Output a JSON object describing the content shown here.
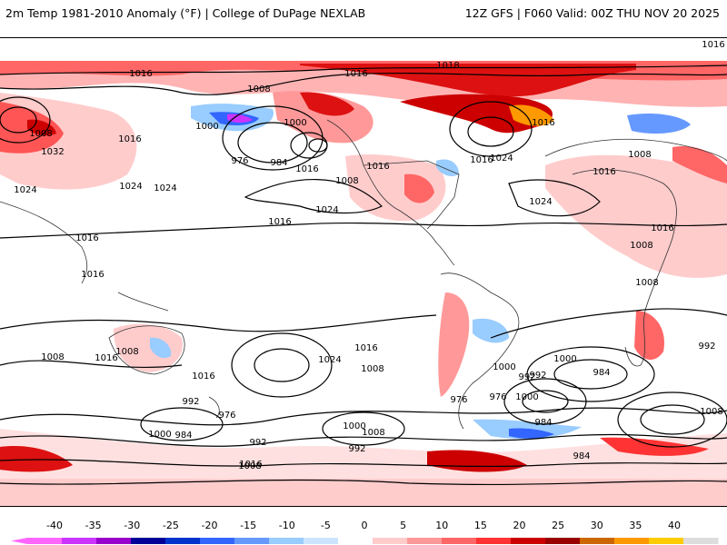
{
  "header": {
    "title": "2m Temp 1981-2010 Anomaly (°F) | College of DuPage NEXLAB",
    "run": "12Z GFS | F060 Valid: 00Z THU NOV 20 2025"
  },
  "legend": {
    "ticks": [
      "-40",
      "-35",
      "-30",
      "-25",
      "-20",
      "-15",
      "-10",
      "-5",
      "0",
      "5",
      "10",
      "15",
      "20",
      "25",
      "30",
      "35",
      "40"
    ],
    "colors": [
      "#ff66ff",
      "#cc33ff",
      "#9900cc",
      "#000099",
      "#0033cc",
      "#3366ff",
      "#6699ff",
      "#99ccff",
      "#cce5ff",
      "#ffffff",
      "#ffcccc",
      "#ff9999",
      "#ff6666",
      "#ff3333",
      "#cc0000",
      "#990000",
      "#cc6600",
      "#ff9900",
      "#ffcc00",
      "#dddddd"
    ]
  },
  "contour_labels": [
    "1016",
    "1016",
    "1018",
    "1008",
    "1008",
    "1000",
    "1000",
    "1016",
    "1032",
    "1024",
    "1024",
    "1024",
    "976",
    "984",
    "1016",
    "1008",
    "1024",
    "1016",
    "1016",
    "1016",
    "1024",
    "1016",
    "1024",
    "1008",
    "1016",
    "1008",
    "1016",
    "1008",
    "1016",
    "1016",
    "1008",
    "1016",
    "1016",
    "1024",
    "1016",
    "1008",
    "1016",
    "1008",
    "1000",
    "992",
    "984",
    "976",
    "1000",
    "992",
    "984",
    "1008",
    "992",
    "1000",
    "984",
    "976",
    "992",
    "1000",
    "984",
    "992",
    "1000",
    "1008",
    "1016",
    "976",
    "992",
    "1008"
  ]
}
